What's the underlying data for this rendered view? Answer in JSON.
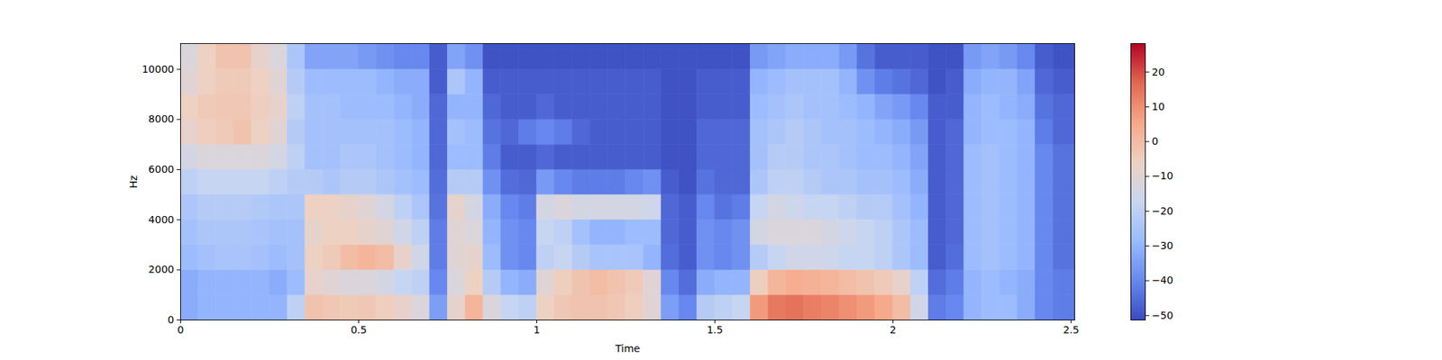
{
  "chart_data": {
    "type": "heatmap",
    "x_label": "Time",
    "y_label": "Hz",
    "xlim": [
      0,
      2.51
    ],
    "xticks": [
      0,
      0.5,
      1,
      1.5,
      2,
      2.5
    ],
    "ylim": [
      0,
      11025
    ],
    "yticks": [
      0,
      2000,
      4000,
      6000,
      8000,
      10000
    ],
    "x_bins": [
      0,
      0.05,
      0.1,
      0.15,
      0.2,
      0.25,
      0.3,
      0.35,
      0.4,
      0.45,
      0.5,
      0.55,
      0.6,
      0.65,
      0.7,
      0.75,
      0.8,
      0.85,
      0.9,
      0.95,
      1,
      1.05,
      1.1,
      1.15,
      1.2,
      1.25,
      1.3,
      1.35,
      1.4,
      1.45,
      1.5,
      1.55,
      1.6,
      1.65,
      1.7,
      1.75,
      1.8,
      1.85,
      1.9,
      1.95,
      2,
      2.05,
      2.1,
      2.15,
      2.2,
      2.25,
      2.3,
      2.35,
      2.4,
      2.45,
      2.51
    ],
    "y_bins": [
      0,
      1000,
      2000,
      3000,
      4000,
      5000,
      6000,
      7000,
      8000,
      9000,
      10000,
      11025
    ],
    "cells": [
      [
        -32,
        -30,
        -30,
        -30,
        -30,
        -30,
        -20,
        -2,
        -3,
        -4,
        -3,
        -5,
        -8,
        -12,
        -35,
        -8,
        2,
        -12,
        -18,
        -20,
        -6,
        -3,
        -2,
        -2,
        -3,
        -5,
        -10,
        -35,
        -40,
        -22,
        -20,
        -18,
        8,
        14,
        15,
        13,
        12,
        10,
        8,
        5,
        0,
        -15,
        -42,
        -40,
        -30,
        -28,
        -28,
        -32,
        -40,
        -42
      ],
      [
        -32,
        -30,
        -30,
        -30,
        -30,
        -32,
        -28,
        -8,
        -10,
        -12,
        -12,
        -14,
        -18,
        -20,
        -40,
        -12,
        -6,
        -22,
        -30,
        -32,
        -10,
        -5,
        -2,
        0,
        -2,
        -4,
        -10,
        -40,
        -45,
        -32,
        -30,
        -30,
        -5,
        2,
        4,
        3,
        2,
        0,
        -2,
        -4,
        -8,
        -20,
        -45,
        -42,
        -30,
        -28,
        -30,
        -32,
        -40,
        -42
      ],
      [
        -28,
        -26,
        -25,
        -25,
        -26,
        -28,
        -26,
        -6,
        -4,
        0,
        2,
        0,
        -8,
        -15,
        -42,
        -10,
        -8,
        -28,
        -38,
        -40,
        -20,
        -18,
        -22,
        -25,
        -25,
        -25,
        -30,
        -45,
        -48,
        -38,
        -40,
        -38,
        -22,
        -18,
        -15,
        -15,
        -16,
        -18,
        -18,
        -20,
        -24,
        -28,
        -48,
        -45,
        -28,
        -26,
        -28,
        -30,
        -40,
        -44
      ],
      [
        -26,
        -24,
        -24,
        -24,
        -25,
        -26,
        -26,
        -8,
        -6,
        -6,
        -8,
        -10,
        -15,
        -20,
        -42,
        -10,
        -12,
        -30,
        -38,
        -40,
        -18,
        -20,
        -26,
        -30,
        -30,
        -28,
        -28,
        -46,
        -48,
        -38,
        -40,
        -38,
        -14,
        -12,
        -12,
        -12,
        -14,
        -16,
        -18,
        -20,
        -24,
        -28,
        -48,
        -46,
        -28,
        -26,
        -28,
        -30,
        -40,
        -44
      ],
      [
        -24,
        -22,
        -22,
        -22,
        -23,
        -24,
        -24,
        -6,
        -6,
        -8,
        -10,
        -14,
        -20,
        -24,
        -44,
        -8,
        -14,
        -32,
        -40,
        -42,
        -14,
        -12,
        -14,
        -14,
        -14,
        -14,
        -16,
        -46,
        -48,
        -40,
        -44,
        -42,
        -18,
        -14,
        -16,
        -18,
        -18,
        -20,
        -22,
        -22,
        -26,
        -30,
        -48,
        -46,
        -28,
        -26,
        -28,
        -30,
        -40,
        -44
      ],
      [
        -20,
        -18,
        -18,
        -18,
        -18,
        -20,
        -22,
        -22,
        -24,
        -22,
        -22,
        -24,
        -26,
        -28,
        -45,
        -22,
        -22,
        -38,
        -45,
        -46,
        -36,
        -40,
        -42,
        -42,
        -42,
        -40,
        -38,
        -48,
        -50,
        -44,
        -46,
        -46,
        -24,
        -20,
        -20,
        -22,
        -24,
        -24,
        -26,
        -26,
        -28,
        -32,
        -48,
        -46,
        -28,
        -26,
        -28,
        -30,
        -40,
        -44
      ],
      [
        -14,
        -12,
        -12,
        -12,
        -12,
        -14,
        -20,
        -26,
        -26,
        -24,
        -24,
        -26,
        -28,
        -30,
        -46,
        -28,
        -28,
        -42,
        -48,
        -48,
        -46,
        -48,
        -48,
        -48,
        -48,
        -48,
        -48,
        -50,
        -50,
        -46,
        -46,
        -46,
        -26,
        -22,
        -22,
        -24,
        -24,
        -26,
        -28,
        -28,
        -30,
        -34,
        -48,
        -46,
        -28,
        -26,
        -28,
        -30,
        -40,
        -44
      ],
      [
        -8,
        -5,
        -4,
        -2,
        -6,
        -10,
        -22,
        -26,
        -26,
        -26,
        -26,
        -26,
        -28,
        -30,
        -46,
        -26,
        -28,
        -44,
        -46,
        -42,
        -40,
        -42,
        -46,
        -48,
        -48,
        -48,
        -48,
        -50,
        -50,
        -46,
        -46,
        -46,
        -26,
        -24,
        -22,
        -24,
        -26,
        -26,
        -28,
        -30,
        -32,
        -36,
        -48,
        -46,
        -30,
        -28,
        -28,
        -30,
        -42,
        -46
      ],
      [
        -6,
        -4,
        -3,
        -3,
        -5,
        -8,
        -20,
        -26,
        -26,
        -28,
        -28,
        -28,
        -30,
        -32,
        -46,
        -30,
        -30,
        -46,
        -48,
        -48,
        -46,
        -48,
        -48,
        -48,
        -48,
        -48,
        -48,
        -50,
        -50,
        -48,
        -48,
        -48,
        -28,
        -26,
        -24,
        -26,
        -26,
        -28,
        -30,
        -34,
        -36,
        -40,
        -48,
        -48,
        -30,
        -28,
        -30,
        -32,
        -44,
        -46
      ],
      [
        -10,
        -6,
        -4,
        -4,
        -6,
        -10,
        -22,
        -28,
        -28,
        -28,
        -28,
        -30,
        -32,
        -32,
        -48,
        -24,
        -30,
        -48,
        -48,
        -48,
        -48,
        -48,
        -48,
        -48,
        -48,
        -48,
        -48,
        -50,
        -50,
        -48,
        -48,
        -48,
        -30,
        -28,
        -26,
        -26,
        -26,
        -30,
        -38,
        -42,
        -44,
        -46,
        -50,
        -48,
        -32,
        -30,
        -30,
        -34,
        -46,
        -48
      ],
      [
        -12,
        -6,
        -2,
        -2,
        -8,
        -12,
        -24,
        -34,
        -34,
        -34,
        -36,
        -38,
        -40,
        -40,
        -48,
        -34,
        -38,
        -50,
        -50,
        -50,
        -50,
        -50,
        -50,
        -50,
        -50,
        -50,
        -50,
        -50,
        -50,
        -50,
        -50,
        -50,
        -36,
        -34,
        -32,
        -32,
        -32,
        -36,
        -44,
        -48,
        -48,
        -48,
        -50,
        -50,
        -36,
        -34,
        -36,
        -40,
        -48,
        -50
      ]
    ],
    "color_range": [
      -51.3,
      28.2
    ],
    "color_ticks": [
      -50,
      -40,
      -30,
      -20,
      -10,
      0,
      10,
      20
    ]
  }
}
